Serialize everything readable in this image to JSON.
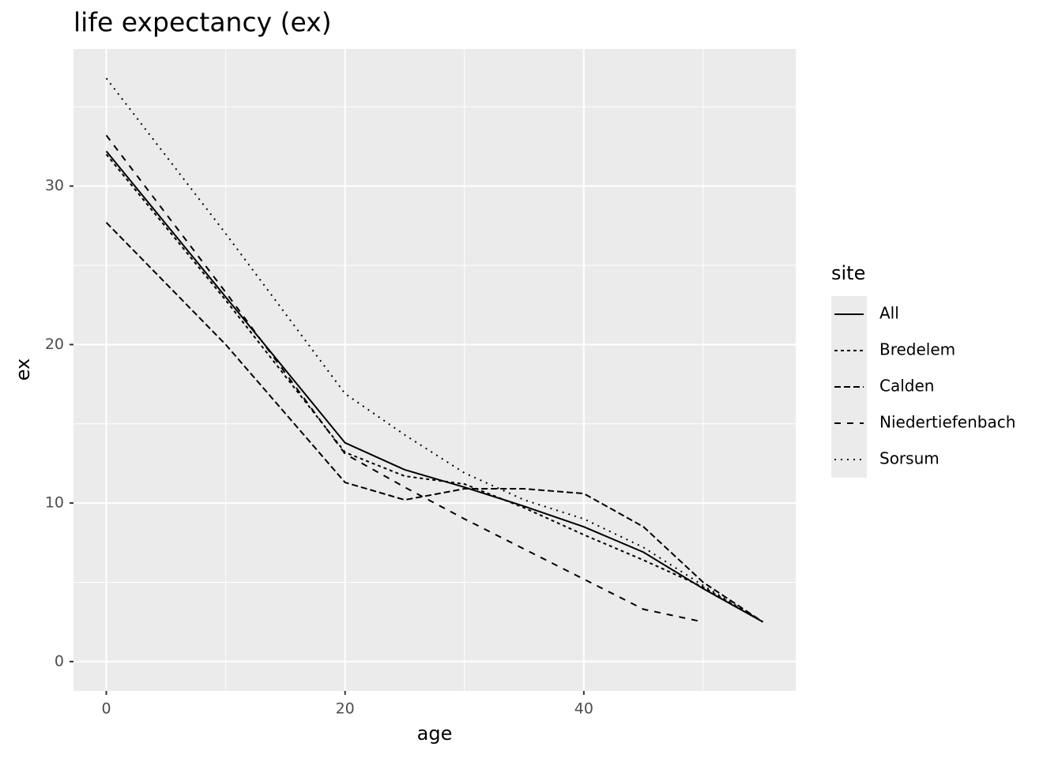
{
  "chart_data": {
    "type": "line",
    "title": "life expectancy (ex)",
    "x_label": "age",
    "y_label": "ex",
    "x": [
      0,
      10,
      20,
      25,
      30,
      35,
      40,
      45,
      50,
      55
    ],
    "series": [
      {
        "name": "All",
        "color": "#000000",
        "linetype": "solid",
        "values": [
          32.2,
          23.0,
          13.8,
          12.1,
          11.0,
          9.8,
          8.5,
          6.9,
          4.6,
          2.5
        ]
      },
      {
        "name": "Bredelem",
        "color": "#000000",
        "linetype": "22",
        "values": [
          32.0,
          22.8,
          13.2,
          11.7,
          11.2,
          9.7,
          8.0,
          6.4,
          4.7,
          2.5
        ]
      },
      {
        "name": "Calden",
        "color": "#000000",
        "linetype": "42",
        "values": [
          27.7,
          20.0,
          11.3,
          10.2,
          10.9,
          10.9,
          10.6,
          8.5,
          5.0,
          2.5
        ]
      },
      {
        "name": "Niedertiefenbach",
        "color": "#000000",
        "linetype": "44",
        "values": [
          33.2,
          23.3,
          13.1,
          11.0,
          9.0,
          7.1,
          5.2,
          3.3,
          2.5,
          null
        ]
      },
      {
        "name": "Sorsum",
        "color": "#000000",
        "linetype": "13",
        "values": [
          36.8,
          27.0,
          16.9,
          14.3,
          11.9,
          10.2,
          9.0,
          7.2,
          4.8,
          2.5
        ]
      }
    ],
    "legend_title": "site",
    "legend_position": "right",
    "xlim": [
      -2.75,
      57.75
    ],
    "xticks": [
      0,
      20,
      40
    ],
    "ylim": [
      -1.85,
      38.65
    ],
    "yticks": [
      0,
      10,
      20,
      30
    ],
    "grid": true,
    "minor_grid": true
  }
}
